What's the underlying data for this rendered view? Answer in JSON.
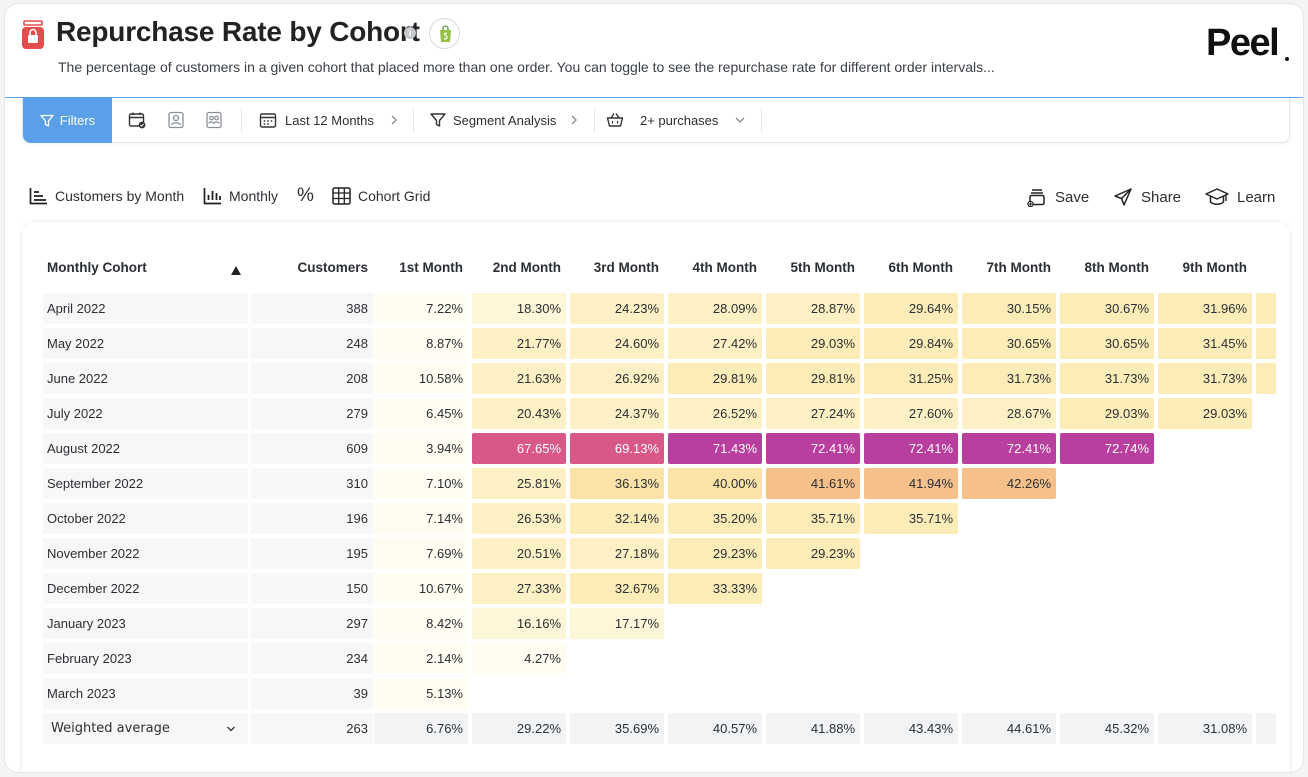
{
  "header": {
    "title": "Repurchase Rate by Cohort",
    "info_icon": "i",
    "subtitle": "The percentage of customers in a given cohort that placed more than one order. You can toggle to see the repurchase rate for different order intervals...",
    "brand": "Peel",
    "brand_dot": "."
  },
  "filterbar": {
    "filters_label": "Filters",
    "date_range": "Last 12 Months",
    "segment": "Segment Analysis",
    "purchases": "2+ purchases"
  },
  "toolbar": {
    "customers_by_month": "Customers by Month",
    "monthly": "Monthly",
    "percent": "%",
    "cohort_grid": "Cohort Grid",
    "save": "Save",
    "share": "Share",
    "learn": "Learn"
  },
  "table": {
    "columns": [
      "Monthly Cohort",
      "Customers",
      "1st Month",
      "2nd Month",
      "3rd Month",
      "4th Month",
      "5th Month",
      "6th Month",
      "7th Month",
      "8th Month",
      "9th Month"
    ],
    "rows": [
      {
        "cohort": "April 2022",
        "customers": "388",
        "values": [
          "7.22%",
          "18.30%",
          "24.23%",
          "28.09%",
          "28.87%",
          "29.64%",
          "30.15%",
          "30.67%",
          "31.96%"
        ]
      },
      {
        "cohort": "May 2022",
        "customers": "248",
        "values": [
          "8.87%",
          "21.77%",
          "24.60%",
          "27.42%",
          "29.03%",
          "29.84%",
          "30.65%",
          "30.65%",
          "31.45%"
        ]
      },
      {
        "cohort": "June 2022",
        "customers": "208",
        "values": [
          "10.58%",
          "21.63%",
          "26.92%",
          "29.81%",
          "29.81%",
          "31.25%",
          "31.73%",
          "31.73%",
          "31.73%"
        ]
      },
      {
        "cohort": "July 2022",
        "customers": "279",
        "values": [
          "6.45%",
          "20.43%",
          "24.37%",
          "26.52%",
          "27.24%",
          "27.60%",
          "28.67%",
          "29.03%",
          "29.03%"
        ]
      },
      {
        "cohort": "August 2022",
        "customers": "609",
        "values": [
          "3.94%",
          "67.65%",
          "69.13%",
          "71.43%",
          "72.41%",
          "72.41%",
          "72.41%",
          "72.74%"
        ]
      },
      {
        "cohort": "September 2022",
        "customers": "310",
        "values": [
          "7.10%",
          "25.81%",
          "36.13%",
          "40.00%",
          "41.61%",
          "41.94%",
          "42.26%"
        ]
      },
      {
        "cohort": "October 2022",
        "customers": "196",
        "values": [
          "7.14%",
          "26.53%",
          "32.14%",
          "35.20%",
          "35.71%",
          "35.71%"
        ]
      },
      {
        "cohort": "November 2022",
        "customers": "195",
        "values": [
          "7.69%",
          "20.51%",
          "27.18%",
          "29.23%",
          "29.23%"
        ]
      },
      {
        "cohort": "December 2022",
        "customers": "150",
        "values": [
          "10.67%",
          "27.33%",
          "32.67%",
          "33.33%"
        ]
      },
      {
        "cohort": "January 2023",
        "customers": "297",
        "values": [
          "8.42%",
          "16.16%",
          "17.17%"
        ]
      },
      {
        "cohort": "February 2023",
        "customers": "234",
        "values": [
          "2.14%",
          "4.27%"
        ]
      },
      {
        "cohort": "March 2023",
        "customers": "39",
        "values": [
          "5.13%"
        ]
      }
    ],
    "average": {
      "label": "Weighted average",
      "customers": "263",
      "values": [
        "6.76%",
        "29.22%",
        "35.69%",
        "40.57%",
        "41.88%",
        "43.43%",
        "44.61%",
        "45.32%",
        "31.08%"
      ]
    }
  },
  "colors": {
    "accent": "#5aa0e8",
    "heat_low": "#fffdf2",
    "heat_mid": "#fdf0c4",
    "heat_orange": "#f6c08a",
    "heat_pink": "#d9588a",
    "heat_magenta": "#b83f9e"
  },
  "icons": [
    "app-bag-icon",
    "info-icon",
    "shopify-icon",
    "filter-icon",
    "calendar-icon",
    "person-icon",
    "people-icon",
    "chevron-right-icon",
    "basket-icon",
    "chevron-down-icon",
    "bar-chart-icon",
    "table-icon",
    "save-icon",
    "share-icon",
    "learn-icon",
    "sort-asc-icon"
  ]
}
